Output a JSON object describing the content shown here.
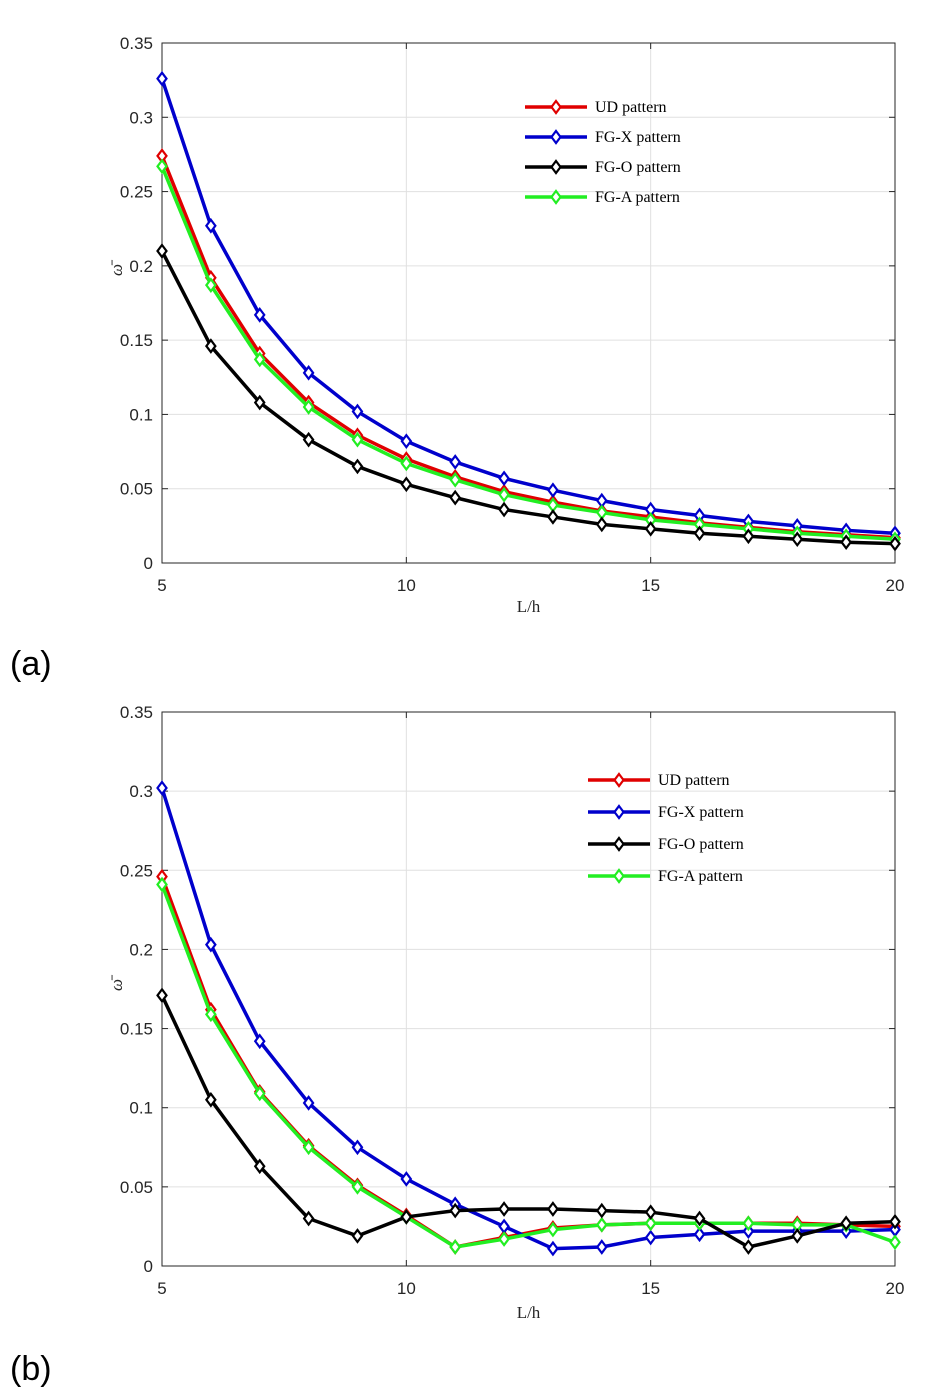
{
  "chart_data": [
    {
      "type": "line",
      "panel_label": "(a)",
      "xlabel": "L/h",
      "ylabel": "ω̄",
      "xlim": [
        5,
        20
      ],
      "ylim": [
        0,
        0.35
      ],
      "xticks": [
        "5",
        "10",
        "15",
        "20"
      ],
      "yticks": [
        "0",
        "0.05",
        "0.1",
        "0.15",
        "0.2",
        "0.25",
        "0.3",
        "0.35"
      ],
      "grid": true,
      "legend_position": "top-right",
      "x": [
        5,
        6,
        7,
        8,
        9,
        10,
        11,
        12,
        13,
        14,
        15,
        16,
        17,
        18,
        19,
        20
      ],
      "series": [
        {
          "name": "UD pattern",
          "color": "#e00000",
          "values": [
            0.274,
            0.192,
            0.141,
            0.108,
            0.086,
            0.07,
            0.058,
            0.048,
            0.041,
            0.035,
            0.031,
            0.027,
            0.024,
            0.021,
            0.019,
            0.017
          ]
        },
        {
          "name": "FG-X pattern",
          "color": "#0000cc",
          "values": [
            0.326,
            0.227,
            0.167,
            0.128,
            0.102,
            0.082,
            0.068,
            0.057,
            0.049,
            0.042,
            0.036,
            0.032,
            0.028,
            0.025,
            0.022,
            0.02
          ]
        },
        {
          "name": "FG-O pattern",
          "color": "#000000",
          "values": [
            0.21,
            0.146,
            0.108,
            0.083,
            0.065,
            0.053,
            0.044,
            0.036,
            0.031,
            0.026,
            0.023,
            0.02,
            0.018,
            0.016,
            0.014,
            0.013
          ]
        },
        {
          "name": "FG-A pattern",
          "color": "#22ee22",
          "values": [
            0.267,
            0.187,
            0.137,
            0.105,
            0.083,
            0.067,
            0.056,
            0.046,
            0.039,
            0.034,
            0.029,
            0.026,
            0.023,
            0.02,
            0.018,
            0.016
          ]
        }
      ]
    },
    {
      "type": "line",
      "panel_label": "(b)",
      "xlabel": "L/h",
      "ylabel": "ω̄",
      "xlim": [
        5,
        20
      ],
      "ylim": [
        0,
        0.35
      ],
      "xticks": [
        "5",
        "10",
        "15",
        "20"
      ],
      "yticks": [
        "0",
        "0.05",
        "0.1",
        "0.15",
        "0.2",
        "0.25",
        "0.3",
        "0.35"
      ],
      "grid": true,
      "legend_position": "top-right",
      "x": [
        5,
        6,
        7,
        8,
        9,
        10,
        11,
        12,
        13,
        14,
        15,
        16,
        17,
        18,
        19,
        20
      ],
      "series": [
        {
          "name": "UD pattern",
          "color": "#e00000",
          "values": [
            0.246,
            0.162,
            0.11,
            0.076,
            0.051,
            0.032,
            0.012,
            0.018,
            0.024,
            0.026,
            0.027,
            0.027,
            0.027,
            0.027,
            0.026,
            0.025
          ]
        },
        {
          "name": "FG-X pattern",
          "color": "#0000cc",
          "values": [
            0.302,
            0.203,
            0.142,
            0.103,
            0.075,
            0.055,
            0.039,
            0.025,
            0.011,
            0.012,
            0.018,
            0.02,
            0.022,
            0.022,
            0.022,
            0.023
          ]
        },
        {
          "name": "FG-O pattern",
          "color": "#000000",
          "values": [
            0.171,
            0.105,
            0.063,
            0.03,
            0.019,
            0.031,
            0.035,
            0.036,
            0.036,
            0.035,
            0.034,
            0.03,
            0.012,
            0.019,
            0.027,
            0.028
          ]
        },
        {
          "name": "FG-A pattern",
          "color": "#22ee22",
          "values": [
            0.241,
            0.159,
            0.109,
            0.075,
            0.05,
            0.031,
            0.012,
            0.017,
            0.023,
            0.026,
            0.027,
            0.027,
            0.027,
            0.026,
            0.026,
            0.015
          ]
        }
      ]
    }
  ]
}
